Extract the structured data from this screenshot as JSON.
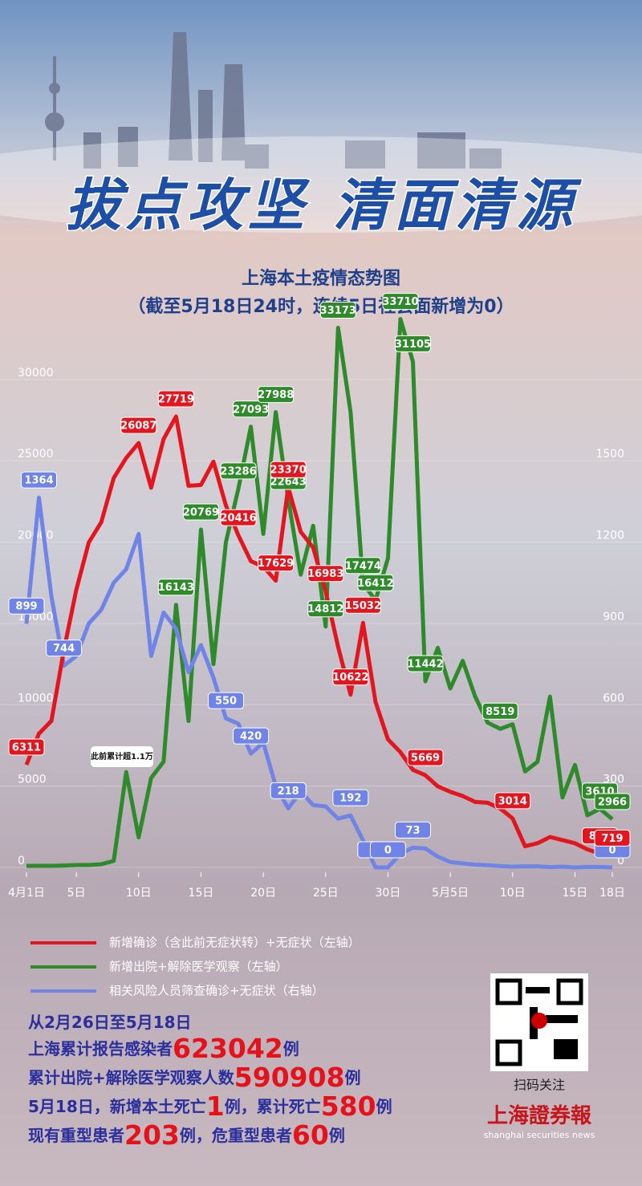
{
  "title": "拔点攻坚 清面清源",
  "subtitle": [
    "上海本土疫情态势图",
    "（截至5月18日24时，连续5日社会面新增为0）"
  ],
  "chart_data": {
    "type": "line",
    "categories": [
      "4月1日",
      null,
      null,
      null,
      "5日",
      null,
      null,
      null,
      null,
      "10日",
      null,
      null,
      null,
      null,
      "15日",
      null,
      null,
      null,
      null,
      "20日",
      null,
      null,
      null,
      null,
      "25日",
      null,
      null,
      null,
      null,
      "30日",
      null,
      null,
      null,
      null,
      "5月5日",
      null,
      null,
      null,
      null,
      "10日",
      null,
      null,
      null,
      null,
      "15日",
      null,
      null,
      "18日"
    ],
    "ylim": [
      0,
      33000
    ],
    "yticks": [
      0,
      5000,
      10000,
      15000,
      20000,
      25000,
      30000
    ],
    "y2lim": [
      0,
      1980
    ],
    "y2ticks": [
      0,
      300,
      600,
      900,
      1200,
      1500
    ],
    "annotation": "此前累计超1.1万",
    "series": [
      {
        "name": "新增确诊（含此前无症状转）+无症状（左轴）",
        "color": "#e3161f",
        "values": [
          6311,
          8226,
          9006,
          13354,
          17077,
          19982,
          21222,
          23937,
          25173,
          26087,
          23342,
          26330,
          27719,
          23460,
          23513,
          24943,
          22248,
          20416,
          18829,
          18495,
          17629,
          23370,
          20634,
          19657,
          16983,
          13562,
          10622,
          15032,
          10181,
          7872,
          7084,
          6000,
          5669,
          4982,
          4651,
          4390,
          4024,
          3975,
          3625,
          3014,
          1305,
          1487,
          1869,
          1681,
          1487,
          1107,
          855,
          719
        ],
        "labeled": [
          0,
          9,
          12,
          17,
          20,
          21,
          24,
          26,
          27,
          32,
          39,
          46,
          47
        ]
      },
      {
        "name": "新增出院+解除医学观察（左轴）",
        "color": "#2e8a2a",
        "values": [
          100,
          100,
          100,
          120,
          150,
          150,
          200,
          400,
          5861,
          1850,
          5500,
          6500,
          16143,
          9000,
          20769,
          12500,
          20000,
          23286,
          27093,
          20500,
          27988,
          22643,
          18000,
          21000,
          14812,
          33173,
          28000,
          17474,
          16412,
          19000,
          33710,
          31105,
          11442,
          13500,
          11000,
          12700,
          10500,
          8900,
          8519,
          8800,
          5900,
          6500,
          10500,
          4300,
          6300,
          3200,
          3610,
          2966
        ],
        "labeled": [
          12,
          14,
          17,
          18,
          20,
          21,
          24,
          25,
          27,
          28,
          30,
          31,
          32,
          38,
          46,
          47
        ]
      },
      {
        "name": "相关风险人员筛查确诊+无症状（右轴）",
        "color": "#6f84e6",
        "axis": "y2",
        "values": [
          899,
          1364,
          1000,
          744,
          780,
          900,
          950,
          1050,
          1100,
          1230,
          780,
          940,
          880,
          720,
          820,
          700,
          550,
          530,
          420,
          460,
          300,
          218,
          280,
          230,
          225,
          180,
          192,
          100,
          0,
          0,
          50,
          73,
          70,
          40,
          20,
          15,
          10,
          8,
          5,
          3,
          4,
          4,
          1,
          3,
          0,
          2,
          2,
          0
        ],
        "labeled": [
          0,
          1,
          3,
          16,
          18,
          21,
          26,
          28,
          29,
          31,
          47
        ]
      }
    ]
  },
  "summary": [
    [
      "从2月26日至5月18日"
    ],
    [
      "上海累计报告感染者",
      "623042",
      "例"
    ],
    [
      "累计出院+解除医学观察人数",
      "590908",
      "例"
    ],
    [
      "5月18日，新增本土死亡",
      "1",
      "例，累计死亡",
      "580",
      "例"
    ],
    [
      "现有重型患者",
      "203",
      "例，危重型患者",
      "60",
      "例"
    ]
  ],
  "qr_caption": "扫码关注",
  "logo": "上海證券報",
  "logo_en": "shanghai securities news"
}
